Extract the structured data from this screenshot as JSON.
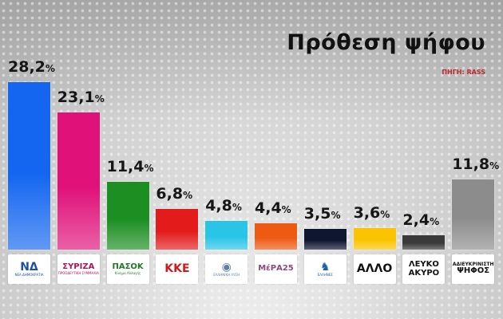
{
  "title": "Πρόθεση ψήφου",
  "source": "ΠΗΓΗ: RASS",
  "chart_data": {
    "type": "bar",
    "title": "Πρόθεση ψήφου",
    "subtitle": "ΠΗΓΗ: RASS",
    "xlabel": "",
    "ylabel": "",
    "categories": [
      "ΝΔ",
      "ΣΥΡΙΖΑ",
      "ΠΑΣΟΚ",
      "ΚΚΕ",
      "Ελληνική Λύση",
      "ΜέΡΑ25",
      "Έλληνες",
      "ΑΛΛΟ",
      "ΛΕΥΚΟ ΑΚΥΡΟ",
      "ΑΔΙΕΥΚΡΙΝΙΣΤΗ ΨΗΦΟΣ"
    ],
    "values": [
      28.2,
      23.1,
      11.4,
      6.8,
      4.8,
      4.4,
      3.5,
      3.6,
      2.4,
      11.8
    ],
    "value_labels": [
      "28,2",
      "23,1",
      "11,4",
      "6,8",
      "4,8",
      "4,4",
      "3,5",
      "3,6",
      "2,4",
      "11,8"
    ],
    "unit": "%",
    "colors": [
      "#1466f0",
      "#e0127a",
      "#1c8e22",
      "#e31b1b",
      "#29c4e6",
      "#ee5a12",
      "#0e1630",
      "#fcc400",
      "#3a3a3a",
      "#8c8c8c"
    ],
    "grid": false,
    "legend": "none"
  },
  "logos": [
    {
      "text": "ΝΔ",
      "sub": "ΝΕΑ ΔΗΜΟΚΡΑΤΙΑ",
      "color": "#1d4fa8"
    },
    {
      "text": "ΣΥΡΙΖΑ",
      "sub": "ΠΡΟΟΔΕΥΤΙΚΗ ΣΥΜΜΑΧΙΑ",
      "color": "#b0145a"
    },
    {
      "text": "ΠΑΣΟΚ",
      "sub": "Κίνημα Αλλαγής",
      "color": "#1c7a24"
    },
    {
      "text": "ΚΚΕ",
      "sub": "",
      "color": "#d11a1a"
    },
    {
      "text": "◉",
      "sub": "ΕΛΛΗΝΙΚΗ ΛΥΣΗ",
      "color": "#5a7fa8"
    },
    {
      "text": "ΜέΡΑ25",
      "sub": "",
      "color": "#8a4a7a"
    },
    {
      "text": "♞",
      "sub": "ΕΛΛΗΝΕΣ",
      "color": "#1a5ea8"
    },
    {
      "text": "ΑΛΛΟ",
      "sub": "",
      "color": "#111111"
    },
    {
      "text": "ΛΕΥΚΟ",
      "sub": "ΑΚΥΡΟ",
      "color": "#111111"
    },
    {
      "text": "ΑΔΙΕΥΚΡΙΝΙΣΤΗ",
      "sub": "ΨΗΦΟΣ",
      "color": "#111111"
    }
  ]
}
